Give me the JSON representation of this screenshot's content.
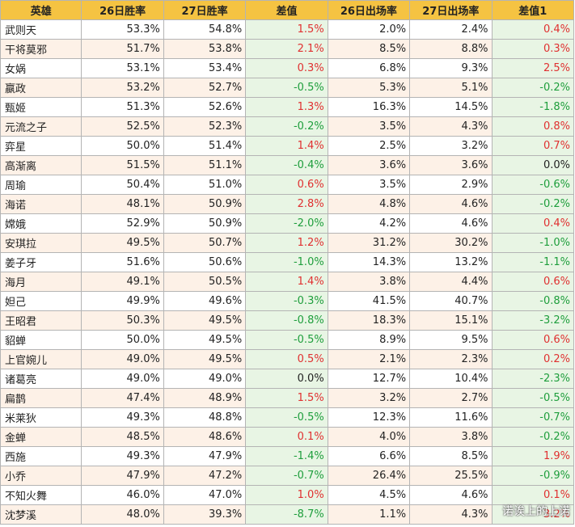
{
  "headers": [
    "英雄",
    "26日胜率",
    "27日胜率",
    "差值",
    "26日出场率",
    "27日出场率",
    "差值1"
  ],
  "rows": [
    [
      "武则天",
      "53.3%",
      "54.8%",
      "1.5%",
      "2.0%",
      "2.4%",
      "0.4%"
    ],
    [
      "干将莫邪",
      "51.7%",
      "53.8%",
      "2.1%",
      "8.5%",
      "8.8%",
      "0.3%"
    ],
    [
      "女娲",
      "53.1%",
      "53.4%",
      "0.3%",
      "6.8%",
      "9.3%",
      "2.5%"
    ],
    [
      "嬴政",
      "53.2%",
      "52.7%",
      "-0.5%",
      "5.3%",
      "5.1%",
      "-0.2%"
    ],
    [
      "甄姬",
      "51.3%",
      "52.6%",
      "1.3%",
      "16.3%",
      "14.5%",
      "-1.8%"
    ],
    [
      "元流之子",
      "52.5%",
      "52.3%",
      "-0.2%",
      "3.5%",
      "4.3%",
      "0.8%"
    ],
    [
      "弈星",
      "50.0%",
      "51.4%",
      "1.4%",
      "2.5%",
      "3.2%",
      "0.7%"
    ],
    [
      "高渐离",
      "51.5%",
      "51.1%",
      "-0.4%",
      "3.6%",
      "3.6%",
      "0.0%"
    ],
    [
      "周瑜",
      "50.4%",
      "51.0%",
      "0.6%",
      "3.5%",
      "2.9%",
      "-0.6%"
    ],
    [
      "海诺",
      "48.1%",
      "50.9%",
      "2.8%",
      "4.8%",
      "4.6%",
      "-0.2%"
    ],
    [
      "嫦娥",
      "52.9%",
      "50.9%",
      "-2.0%",
      "4.2%",
      "4.6%",
      "0.4%"
    ],
    [
      "安琪拉",
      "49.5%",
      "50.7%",
      "1.2%",
      "31.2%",
      "30.2%",
      "-1.0%"
    ],
    [
      "姜子牙",
      "51.6%",
      "50.6%",
      "-1.0%",
      "14.3%",
      "13.2%",
      "-1.1%"
    ],
    [
      "海月",
      "49.1%",
      "50.5%",
      "1.4%",
      "3.8%",
      "4.4%",
      "0.6%"
    ],
    [
      "妲己",
      "49.9%",
      "49.6%",
      "-0.3%",
      "41.5%",
      "40.7%",
      "-0.8%"
    ],
    [
      "王昭君",
      "50.3%",
      "49.5%",
      "-0.8%",
      "18.3%",
      "15.1%",
      "-3.2%"
    ],
    [
      "貂蝉",
      "50.0%",
      "49.5%",
      "-0.5%",
      "8.9%",
      "9.5%",
      "0.6%"
    ],
    [
      "上官婉儿",
      "49.0%",
      "49.5%",
      "0.5%",
      "2.1%",
      "2.3%",
      "0.2%"
    ],
    [
      "诸葛亮",
      "49.0%",
      "49.0%",
      "0.0%",
      "12.7%",
      "10.4%",
      "-2.3%"
    ],
    [
      "扁鹊",
      "47.4%",
      "48.9%",
      "1.5%",
      "3.2%",
      "2.7%",
      "-0.5%"
    ],
    [
      "米莱狄",
      "49.3%",
      "48.8%",
      "-0.5%",
      "12.3%",
      "11.6%",
      "-0.7%"
    ],
    [
      "金蝉",
      "48.5%",
      "48.6%",
      "0.1%",
      "4.0%",
      "3.8%",
      "-0.2%"
    ],
    [
      "西施",
      "49.3%",
      "47.9%",
      "-1.4%",
      "6.6%",
      "8.5%",
      "1.9%"
    ],
    [
      "小乔",
      "47.9%",
      "47.2%",
      "-0.7%",
      "26.4%",
      "25.5%",
      "-0.9%"
    ],
    [
      "不知火舞",
      "46.0%",
      "47.0%",
      "1.0%",
      "4.5%",
      "4.6%",
      "0.1%"
    ],
    [
      "沈梦溪",
      "48.0%",
      "39.3%",
      "-8.7%",
      "1.1%",
      "4.3%",
      "3.2%"
    ]
  ],
  "watermark": "诺诶上的上诺",
  "colors": {
    "header_bg": "#f5c342",
    "diff_bg": "#e8f5e4",
    "positive": "#e03030",
    "negative": "#1e9e3c",
    "even_row_bg": "#fdf1e7"
  }
}
